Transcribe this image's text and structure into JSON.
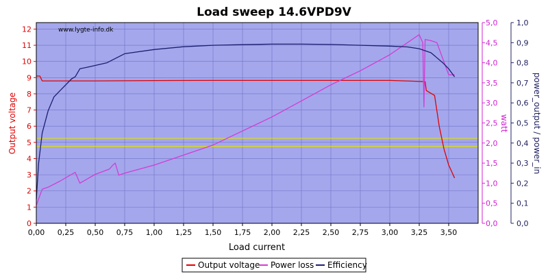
{
  "chart_data": {
    "type": "line",
    "title": "Load sweep 14.6VPD9V",
    "watermark": "www.lygte-info.dk",
    "xlabel": "Load current",
    "ylabel_left": "Output voltage",
    "ylabel_right1": "watt",
    "ylabel_right2": "power_output / power_in",
    "xlim": [
      0,
      3.75
    ],
    "ylim_left": [
      0,
      12.4
    ],
    "ylim_right1": [
      0,
      5.0
    ],
    "ylim_right2": [
      0,
      1.0
    ],
    "x_ticks": [
      "0,00",
      "0,25",
      "0,50",
      "0,75",
      "1,00",
      "1,25",
      "1,50",
      "1,75",
      "2,00",
      "2,25",
      "2,50",
      "2,75",
      "3,00",
      "3,25",
      "3,50"
    ],
    "y_left_ticks": [
      "0",
      "1",
      "2",
      "3",
      "4",
      "5",
      "6",
      "7",
      "8",
      "9",
      "10",
      "11",
      "12"
    ],
    "y_right1_ticks": [
      "0,0",
      "0,5",
      "1,0",
      "1,5",
      "2,0",
      "2,5",
      "3,0",
      "3,5",
      "4,0",
      "4,5",
      "5,0"
    ],
    "y_right2_ticks": [
      "0,0",
      "0,1",
      "0,2",
      "0,3",
      "0,4",
      "0,5",
      "0,6",
      "0,7",
      "0,8",
      "0,9",
      "1,0"
    ],
    "reference_lines_left": [
      5.25,
      4.75
    ],
    "grid": true,
    "legend_position": "bottom-center",
    "colors": {
      "plot_bg": "#A4A7EC",
      "grid": "#6E72C4",
      "voltage": "#E00000",
      "power_loss": "#D43BD4",
      "efficiency": "#1A1E6E",
      "reference": "#E0E000",
      "left_axis": "#E00000",
      "right1_axis": "#D020D0",
      "right2_axis": "#202060"
    },
    "series": [
      {
        "name": "Output voltage",
        "axis": "left",
        "x": [
          0.0,
          0.03,
          0.05,
          0.5,
          1.0,
          1.5,
          2.0,
          2.5,
          3.0,
          3.2,
          3.3,
          3.31,
          3.38,
          3.42,
          3.46,
          3.5,
          3.55
        ],
        "y": [
          9.1,
          9.1,
          8.8,
          8.8,
          8.82,
          8.83,
          8.83,
          8.83,
          8.83,
          8.78,
          8.75,
          8.2,
          7.9,
          6.0,
          4.6,
          3.6,
          2.8
        ]
      },
      {
        "name": "Power loss",
        "axis": "right1",
        "x": [
          0.0,
          0.05,
          0.1,
          0.2,
          0.3,
          0.33,
          0.37,
          0.5,
          0.62,
          0.65,
          0.67,
          0.7,
          0.75,
          1.0,
          1.25,
          1.5,
          1.75,
          2.0,
          2.25,
          2.5,
          2.75,
          3.0,
          3.15,
          3.2,
          3.25,
          3.28,
          3.29,
          3.3,
          3.35,
          3.4,
          3.45,
          3.5,
          3.55
        ],
        "y": [
          0.45,
          0.85,
          0.9,
          1.05,
          1.22,
          1.27,
          1.0,
          1.22,
          1.35,
          1.45,
          1.5,
          1.2,
          1.25,
          1.45,
          1.7,
          1.95,
          2.3,
          2.65,
          3.05,
          3.45,
          3.8,
          4.2,
          4.5,
          4.6,
          4.7,
          4.5,
          2.9,
          4.58,
          4.55,
          4.5,
          4.1,
          3.7,
          3.7
        ]
      },
      {
        "name": "Efficiency",
        "axis": "right2",
        "x": [
          0.0,
          0.02,
          0.05,
          0.1,
          0.15,
          0.2,
          0.25,
          0.3,
          0.33,
          0.37,
          0.45,
          0.6,
          0.7,
          0.75,
          1.0,
          1.25,
          1.5,
          1.75,
          2.0,
          2.25,
          2.5,
          2.75,
          3.0,
          3.15,
          3.25,
          3.35,
          3.45,
          3.5,
          3.55
        ],
        "y": [
          0.12,
          0.3,
          0.45,
          0.56,
          0.63,
          0.66,
          0.69,
          0.72,
          0.73,
          0.77,
          0.78,
          0.8,
          0.83,
          0.845,
          0.866,
          0.88,
          0.887,
          0.89,
          0.893,
          0.893,
          0.891,
          0.887,
          0.883,
          0.879,
          0.87,
          0.85,
          0.8,
          0.77,
          0.73
        ]
      }
    ]
  }
}
